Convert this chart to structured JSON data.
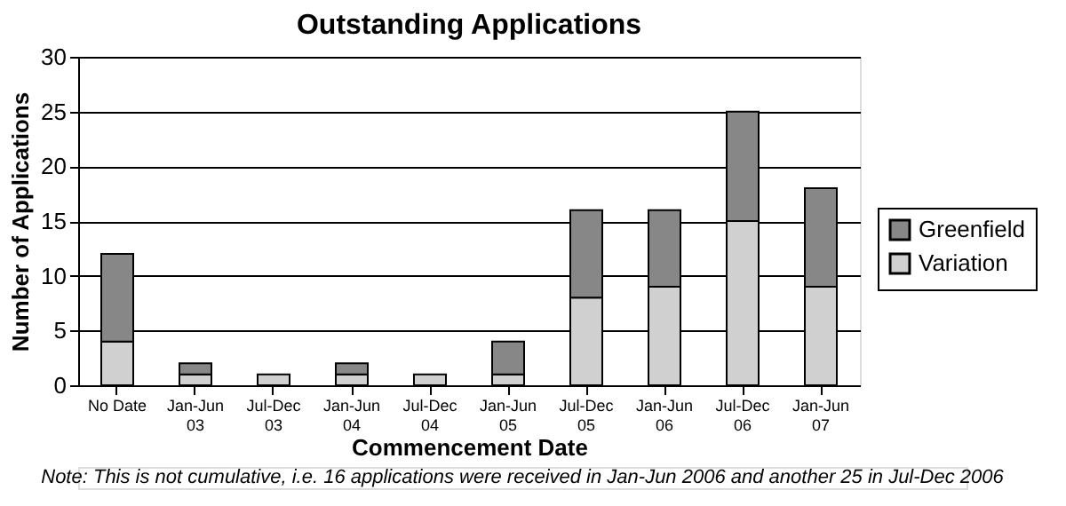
{
  "chart_data": {
    "type": "bar",
    "title": "Outstanding Applications",
    "xlabel": "Commencement Date",
    "ylabel": "Number of Applications",
    "categories": [
      "No Date",
      "Jan-Jun 03",
      "Jul-Dec 03",
      "Jan-Jun 04",
      "Jul-Dec 04",
      "Jan-Jun 05",
      "Jul-Dec 05",
      "Jan-Jun 06",
      "Jul-Dec 06",
      "Jan-Jun 07"
    ],
    "series": [
      {
        "name": "Variation",
        "color": "#d0d0d0",
        "values": [
          4,
          1,
          1,
          1,
          1,
          1,
          8,
          9,
          15,
          9
        ]
      },
      {
        "name": "Greenfield",
        "color": "#878787",
        "values": [
          8,
          1,
          0,
          1,
          0,
          3,
          8,
          7,
          10,
          9
        ]
      }
    ],
    "stacked": true,
    "ylim": [
      0,
      30
    ],
    "yticks": [
      0,
      5,
      10,
      15,
      20,
      25,
      30
    ],
    "grid": "y",
    "legend": "right",
    "annotations": [
      "Note: This is not cumulative, i.e. 16 applications were received in Jan-Jun 2006 and another 25 in Jul-Dec 2006"
    ]
  }
}
